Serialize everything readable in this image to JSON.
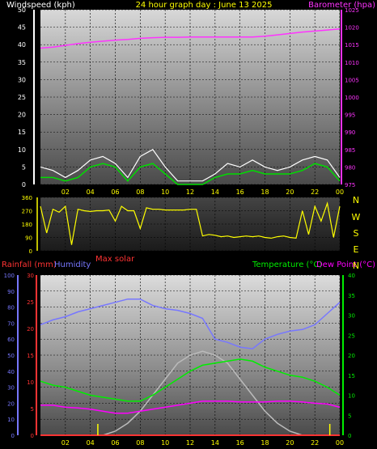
{
  "header": {
    "left": "Windspeed (kph)",
    "center": "24 hour graph day : June 13 2025",
    "right": "Barometer (hpa)"
  },
  "mid_header": {
    "rain": "Rainfall (mm)",
    "humidity": "Humidity",
    "max_solar": "Max solar",
    "temperature": "Temperature (°C)",
    "dew_point": "Dew Point (°C)"
  },
  "compass": [
    "N",
    "W",
    "S",
    "E",
    "N"
  ],
  "colors": {
    "wind": "#ffffff",
    "wind_avg": "#00dd00",
    "barometer": "#ff33ff",
    "direction": "#ffff00",
    "rain": "#ff3333",
    "humidity": "#7777ff",
    "temperature": "#00ee00",
    "dew_point": "#ff00ff",
    "solar": "#bbbbbb",
    "solar_spikes": "#ffff00"
  },
  "chart_data": [
    {
      "type": "line",
      "name": "wind_barometer",
      "x_ticks": [
        "02",
        "04",
        "06",
        "08",
        "10",
        "12",
        "14",
        "16",
        "18",
        "20",
        "22",
        "00"
      ],
      "wind_axis": {
        "label": "Windspeed (kph)",
        "ylim": [
          0,
          50
        ],
        "ticks": [
          0,
          5,
          10,
          15,
          20,
          25,
          30,
          35,
          40,
          45,
          50
        ]
      },
      "baro_axis": {
        "label": "Barometer (hpa)",
        "ylim": [
          975,
          1025
        ],
        "ticks": [
          975,
          980,
          985,
          990,
          995,
          1000,
          1005,
          1010,
          1015,
          1020,
          1025
        ]
      },
      "x": [
        0,
        1,
        2,
        3,
        4,
        5,
        6,
        7,
        8,
        9,
        10,
        11,
        12,
        13,
        14,
        15,
        16,
        17,
        18,
        19,
        20,
        21,
        22,
        23,
        24
      ],
      "wind_gust": [
        5,
        4,
        2,
        4,
        7,
        8,
        6,
        2,
        8,
        10,
        5,
        1,
        1,
        1,
        3,
        6,
        5,
        7,
        5,
        4,
        5,
        7,
        8,
        7,
        2
      ],
      "wind_avg": [
        2,
        2,
        1,
        2,
        5,
        6,
        5,
        1,
        5,
        6,
        3,
        0,
        0,
        0,
        2,
        3,
        3,
        4,
        3,
        3,
        3,
        4,
        6,
        5,
        1
      ],
      "barometer": [
        1014,
        1014.3,
        1014.8,
        1015.3,
        1015.7,
        1016,
        1016.3,
        1016.5,
        1016.8,
        1017,
        1017.1,
        1017.1,
        1017.2,
        1017.2,
        1017.2,
        1017.2,
        1017.2,
        1017.2,
        1017.4,
        1017.8,
        1018.2,
        1018.6,
        1018.9,
        1019.2,
        1019.5
      ]
    },
    {
      "type": "line",
      "name": "wind_direction",
      "ylim": [
        0,
        360
      ],
      "ticks": [
        0,
        90,
        180,
        270,
        360
      ],
      "x": [
        0,
        0.5,
        1,
        1.5,
        2,
        2.5,
        3,
        3.5,
        4,
        4.5,
        5,
        5.5,
        6,
        6.5,
        7,
        7.5,
        8,
        8.5,
        9,
        9.5,
        10,
        10.5,
        11,
        11.5,
        12,
        12.5,
        13,
        13.5,
        14,
        14.5,
        15,
        15.5,
        16,
        16.5,
        17,
        17.5,
        18,
        18.5,
        19,
        19.5,
        20,
        20.5,
        21,
        21.5,
        22,
        22.5,
        23,
        23.5,
        24
      ],
      "values": [
        300,
        120,
        280,
        260,
        300,
        40,
        280,
        270,
        265,
        270,
        270,
        275,
        200,
        300,
        270,
        270,
        150,
        290,
        280,
        280,
        275,
        275,
        275,
        275,
        280,
        280,
        100,
        110,
        105,
        95,
        100,
        90,
        95,
        100,
        95,
        100,
        90,
        85,
        95,
        100,
        90,
        85,
        270,
        110,
        300,
        200,
        320,
        90,
        300
      ]
    },
    {
      "type": "line",
      "name": "temperature_humidity_rain",
      "x_ticks": [
        "02",
        "04",
        "06",
        "08",
        "10",
        "12",
        "14",
        "16",
        "18",
        "20",
        "22",
        "00"
      ],
      "humidity_axis": {
        "label": "Humidity",
        "ylim": [
          0,
          100
        ],
        "ticks": [
          0,
          10,
          20,
          30,
          40,
          50,
          60,
          70,
          80,
          90,
          100
        ]
      },
      "rain_axis": {
        "label": "Rainfall (mm)",
        "ylim": [
          0,
          30
        ],
        "ticks": [
          0,
          5,
          10,
          15,
          20,
          25,
          30
        ]
      },
      "temp_axis": {
        "label": "Temperature (°C)",
        "ylim": [
          0,
          40
        ],
        "ticks": [
          0,
          5,
          10,
          15,
          20,
          25,
          30,
          35,
          40
        ]
      },
      "x": [
        0,
        1,
        2,
        3,
        4,
        5,
        6,
        7,
        8,
        9,
        10,
        11,
        12,
        13,
        14,
        15,
        16,
        17,
        18,
        19,
        20,
        21,
        22,
        23,
        24
      ],
      "humidity": [
        69,
        72,
        74,
        77,
        79,
        81,
        83,
        85,
        85,
        81,
        79,
        78,
        76,
        73,
        60,
        58,
        55,
        54,
        60,
        63,
        65,
        66,
        69,
        76,
        83
      ],
      "temperature": [
        13.5,
        12.5,
        12,
        11,
        10,
        9.5,
        9,
        8.5,
        8.5,
        10,
        12,
        14,
        16,
        17.5,
        18,
        18.5,
        19,
        18.5,
        17,
        16,
        15,
        14.5,
        13.5,
        12,
        10
      ],
      "dew_point": [
        7.5,
        7.5,
        7,
        6.8,
        6.5,
        6,
        5.5,
        5.5,
        6,
        6.5,
        7,
        7.5,
        8,
        8.5,
        8.5,
        8.5,
        8.3,
        8.3,
        8.3,
        8.5,
        8.5,
        8.3,
        8,
        7.8,
        7
      ],
      "max_solar": [
        0,
        0,
        0,
        0,
        0,
        0,
        1,
        3,
        6,
        10,
        14,
        18,
        20,
        21,
        20,
        18,
        14,
        10,
        6,
        3,
        1,
        0,
        0,
        0,
        0
      ],
      "rain": [
        0,
        0,
        0,
        0,
        0,
        0,
        0,
        0,
        0,
        0,
        0,
        0,
        0,
        0,
        0,
        0,
        0,
        0,
        0,
        0,
        0,
        0,
        0,
        0,
        0
      ]
    }
  ]
}
